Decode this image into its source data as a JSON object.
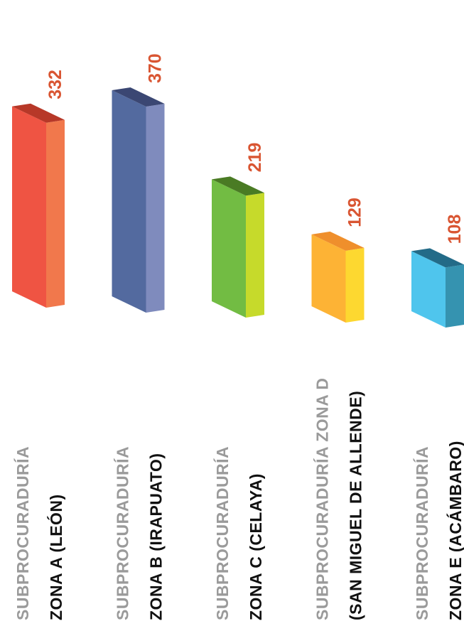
{
  "chart_data": {
    "type": "bar",
    "categories": [
      [
        "SUBPROCURADURÍA",
        "ZONA A (LEÓN)"
      ],
      [
        "SUBPROCURADURÍA",
        "ZONA B (IRAPUATO)"
      ],
      [
        "SUBPROCURADURÍA",
        "ZONA C (CELAYA)"
      ],
      [
        "SUBPROCURADURÍA ZONA D",
        "(SAN MIGUEL DE ALLENDE)"
      ],
      [
        "SUBPROCURADURÍA",
        "ZONA E (ACÁMBARO)"
      ]
    ],
    "values": [
      332,
      370,
      219,
      129,
      108
    ],
    "value_labels": [
      "332",
      "370",
      "219",
      "129",
      "108"
    ],
    "ylim": [
      0,
      370
    ],
    "grid": false,
    "legend": "none",
    "bar_style": "3d",
    "colors": [
      {
        "front": "#ef5443",
        "side": "#f1784c",
        "top": "#b73828"
      },
      {
        "front": "#536a9f",
        "side": "#7f8bbd",
        "top": "#3b4773"
      },
      {
        "front": "#72bc43",
        "side": "#c6da2b",
        "top": "#4a7b24"
      },
      {
        "front": "#fdb335",
        "side": "#fdd830",
        "top": "#ef8f2c"
      },
      {
        "front": "#4fc5ed",
        "side": "#3593b0",
        "top": "#236b88"
      }
    ],
    "label_color": "#d95532",
    "category_line1_color": "#9a9a9a",
    "category_line2_color": "#111111"
  }
}
